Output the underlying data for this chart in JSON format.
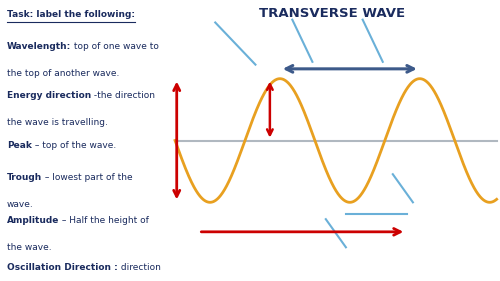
{
  "title": "TRANSVERSE WAVE",
  "title_color": "#1a2b5e",
  "title_fontsize": 9.5,
  "background_color": "#ffffff",
  "wave_color": "#e8a020",
  "wave_linewidth": 2.0,
  "centerline_color": "#b0b8c0",
  "centerline_linewidth": 1.5,
  "wavelength_arrow_color": "#3d5a8a",
  "amplitude_arrow_color": "#cc0000",
  "energy_direction_color": "#cc0000",
  "oscillation_line_color": "#6ab0d8",
  "text_color": "#1a2b5e",
  "left_texts": [
    {
      "bold": "Task: label the following:",
      "rest": "",
      "underline": true,
      "indent": false
    },
    {
      "bold": "Wavelength:",
      "rest": " top of one wave to\nthe top of another wave.",
      "underline": false,
      "indent": false
    },
    {
      "bold": "Energy direction",
      "rest": " -the direction\nthe wave is travelling.",
      "underline": false,
      "indent": false
    },
    {
      "bold": "Peak",
      "rest": " – top of the wave.",
      "underline": false,
      "indent": false
    },
    {
      "bold": "Trough",
      "rest": " – lowest part of the\nwave.",
      "underline": false,
      "indent": false
    },
    {
      "bold": "Amplitude",
      "rest": " – Half the height of\nthe wave.",
      "underline": false,
      "indent": false
    },
    {
      "bold": "Oscillation Direction :",
      "rest": " direction\nthe wave vibrates",
      "underline": false,
      "indent": false
    }
  ]
}
